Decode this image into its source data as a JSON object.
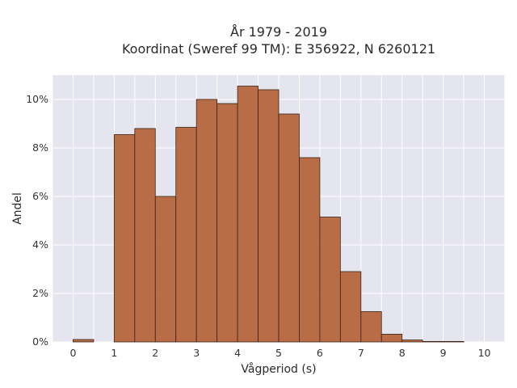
{
  "chart_data": {
    "type": "bar",
    "title_line1": "År 1979 - 2019",
    "title_line2": "Koordinat (Sweref 99 TM): E 356922, N 6260121",
    "xlabel": "Vågperiod (s)",
    "ylabel": "Andel",
    "xlim": [
      -0.5,
      10.5
    ],
    "ylim": [
      0,
      11.0
    ],
    "x_ticks": [
      0,
      1,
      2,
      3,
      4,
      5,
      6,
      7,
      8,
      9,
      10
    ],
    "y_ticks": [
      {
        "value": 0,
        "label": "0%"
      },
      {
        "value": 2,
        "label": "2%"
      },
      {
        "value": 4,
        "label": "4%"
      },
      {
        "value": 6,
        "label": "6%"
      },
      {
        "value": 8,
        "label": "8%"
      },
      {
        "value": 10,
        "label": "10%"
      }
    ],
    "bin_width": 0.5,
    "bins": [
      {
        "start": 0.0,
        "value": 0.1
      },
      {
        "start": 0.5,
        "value": 0.0
      },
      {
        "start": 1.0,
        "value": 8.55
      },
      {
        "start": 1.5,
        "value": 8.8
      },
      {
        "start": 2.0,
        "value": 6.0
      },
      {
        "start": 2.5,
        "value": 8.85
      },
      {
        "start": 3.0,
        "value": 10.0
      },
      {
        "start": 3.5,
        "value": 9.83
      },
      {
        "start": 4.0,
        "value": 10.55
      },
      {
        "start": 4.5,
        "value": 10.4
      },
      {
        "start": 5.0,
        "value": 9.4
      },
      {
        "start": 5.5,
        "value": 7.6
      },
      {
        "start": 6.0,
        "value": 5.15
      },
      {
        "start": 6.5,
        "value": 2.9
      },
      {
        "start": 7.0,
        "value": 1.25
      },
      {
        "start": 7.5,
        "value": 0.32
      },
      {
        "start": 8.0,
        "value": 0.08
      },
      {
        "start": 8.5,
        "value": 0.02
      },
      {
        "start": 9.0,
        "value": 0.02
      }
    ],
    "grid": true,
    "colors": {
      "bar_fill": "#b5663d",
      "bar_edge": "#3a2418",
      "plot_background": "#e5e5f0",
      "grid": "#ffffff"
    }
  }
}
